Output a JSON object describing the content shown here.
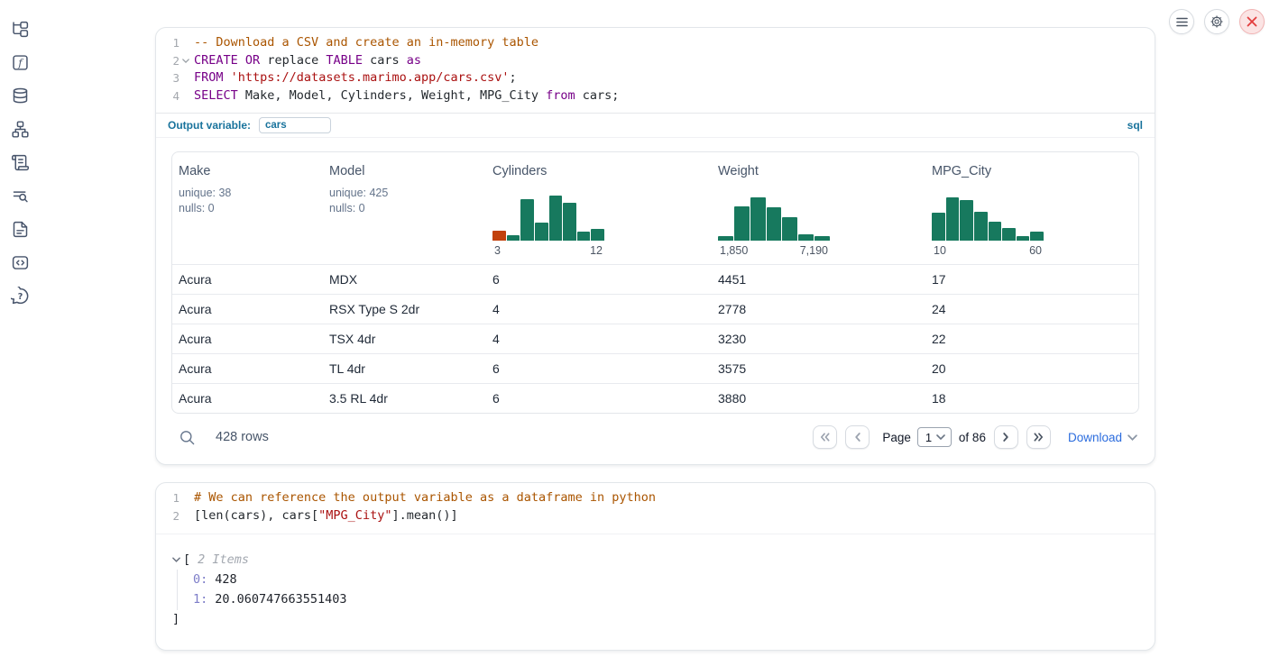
{
  "colors": {
    "hist_green": "#17795e",
    "hist_orange": "#c2410c",
    "accent_teal": "#19739c",
    "link_blue": "#2b6cde",
    "keyword": "#770088",
    "comment": "#aa5500",
    "string": "#aa1111"
  },
  "sidebar": {
    "icons": [
      "file-tree",
      "functions",
      "datasources",
      "dependency-graph",
      "logs",
      "list-search",
      "documentation",
      "snippets",
      "help"
    ]
  },
  "topbar": {
    "buttons": [
      "menu",
      "settings",
      "close"
    ]
  },
  "sql_cell": {
    "lines": [
      {
        "num": "1",
        "tokens": [
          {
            "t": "-- Download a CSV and create an in-memory table",
            "c": "com"
          }
        ]
      },
      {
        "num": "2",
        "fold": true,
        "tokens": [
          {
            "t": "CREATE",
            "c": "kw"
          },
          {
            "t": " ",
            "c": "pl"
          },
          {
            "t": "OR",
            "c": "kw"
          },
          {
            "t": " replace ",
            "c": "pl"
          },
          {
            "t": "TABLE",
            "c": "kw"
          },
          {
            "t": " cars ",
            "c": "pl"
          },
          {
            "t": "as",
            "c": "kw"
          }
        ]
      },
      {
        "num": "3",
        "tokens": [
          {
            "t": "FROM",
            "c": "kw"
          },
          {
            "t": " ",
            "c": "pl"
          },
          {
            "t": "'https://datasets.marimo.app/cars.csv'",
            "c": "str"
          },
          {
            "t": ";",
            "c": "pl"
          }
        ]
      },
      {
        "num": "4",
        "tokens": [
          {
            "t": "SELECT",
            "c": "kw"
          },
          {
            "t": " Make, Model, Cylinders, Weight, MPG_City ",
            "c": "pl"
          },
          {
            "t": "from",
            "c": "kw"
          },
          {
            "t": " cars;",
            "c": "pl"
          }
        ]
      }
    ],
    "output_variable_label": "Output variable:",
    "output_variable_value": "cars",
    "language_badge": "sql",
    "table": {
      "columns": [
        {
          "name": "Make",
          "stats": [
            "unique: 38",
            "nulls: 0"
          ]
        },
        {
          "name": "Model",
          "stats": [
            "unique: 425",
            "nulls: 0"
          ]
        },
        {
          "name": "Cylinders",
          "histogram": {
            "min": "3",
            "max": "12",
            "bars": [
              {
                "h": 22,
                "c": "orange"
              },
              {
                "h": 13
              },
              {
                "h": 88
              },
              {
                "h": 38
              },
              {
                "h": 95
              },
              {
                "h": 80
              },
              {
                "h": 20
              },
              {
                "h": 26
              }
            ]
          }
        },
        {
          "name": "Weight",
          "histogram": {
            "min": "1,850",
            "max": "7,190",
            "bars": [
              {
                "h": 10
              },
              {
                "h": 72
              },
              {
                "h": 92
              },
              {
                "h": 70
              },
              {
                "h": 50
              },
              {
                "h": 14
              },
              {
                "h": 11
              }
            ]
          }
        },
        {
          "name": "MPG_City",
          "histogram": {
            "min": "10",
            "max": "60",
            "bars": [
              {
                "h": 60
              },
              {
                "h": 92
              },
              {
                "h": 85
              },
              {
                "h": 62
              },
              {
                "h": 40
              },
              {
                "h": 28
              },
              {
                "h": 11
              },
              {
                "h": 19
              }
            ]
          }
        }
      ],
      "rows": [
        [
          "Acura",
          "MDX",
          "6",
          "4451",
          "17"
        ],
        [
          "Acura",
          "RSX Type S 2dr",
          "4",
          "2778",
          "24"
        ],
        [
          "Acura",
          "TSX 4dr",
          "4",
          "3230",
          "22"
        ],
        [
          "Acura",
          "TL 4dr",
          "6",
          "3575",
          "20"
        ],
        [
          "Acura",
          "3.5 RL 4dr",
          "6",
          "3880",
          "18"
        ]
      ],
      "footer": {
        "row_count": "428 rows",
        "page_label": "Page",
        "page_value": "1",
        "page_total": "of 86",
        "download_label": "Download",
        "pagination_buttons": [
          "first-page",
          "previous-page",
          "next-page",
          "last-page"
        ]
      }
    }
  },
  "python_cell": {
    "lines": [
      {
        "num": "1",
        "tokens": [
          {
            "t": "# We can reference the output variable as a dataframe in python",
            "c": "com"
          }
        ]
      },
      {
        "num": "2",
        "tokens": [
          {
            "t": "[len(cars), cars[",
            "c": "pl"
          },
          {
            "t": "\"MPG_City\"",
            "c": "str"
          },
          {
            "t": "].mean()]",
            "c": "pl"
          }
        ]
      }
    ],
    "output_tree": {
      "open_bracket": "[",
      "items_label": "2 Items",
      "entries": [
        {
          "key": "0:",
          "value": "428"
        },
        {
          "key": "1:",
          "value": "20.060747663551403"
        }
      ],
      "close_bracket": "]"
    }
  }
}
